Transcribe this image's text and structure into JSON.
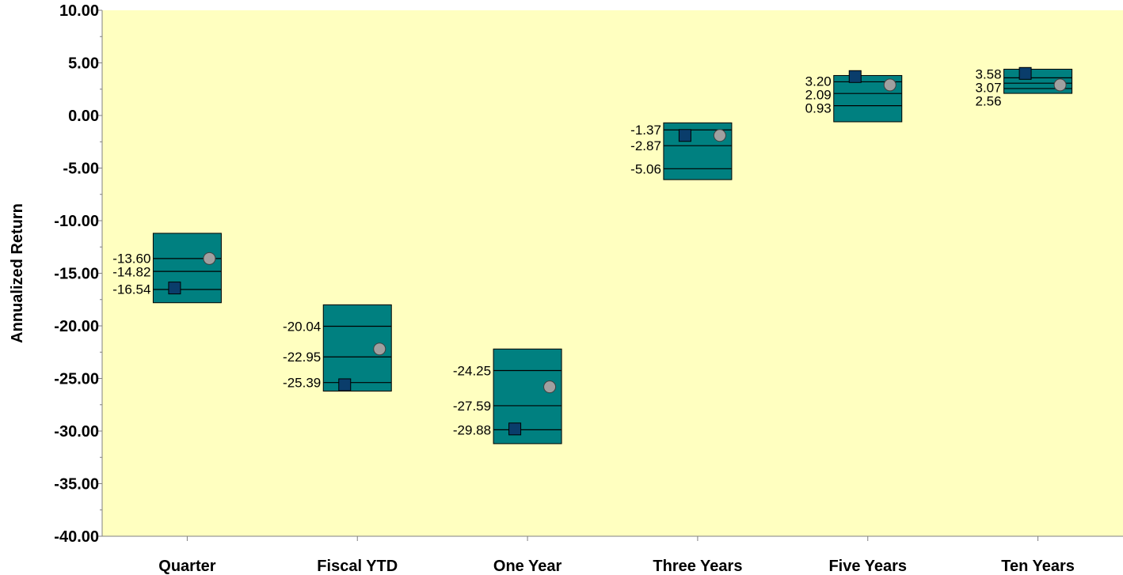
{
  "chart_data": {
    "type": "floating-bar",
    "ylabel": "Annualized Return",
    "xlabel": "",
    "ylim": [
      -40,
      10
    ],
    "y_ticks": [
      "10.00",
      "5.00",
      "0.00",
      "-5.00",
      "-10.00",
      "-15.00",
      "-20.00",
      "-25.00",
      "-30.00",
      "-35.00",
      "-40.00"
    ],
    "y_tick_values": [
      10,
      5,
      0,
      -5,
      -10,
      -15,
      -20,
      -25,
      -30,
      -35,
      -40
    ],
    "categories": [
      "Quarter",
      "Fiscal YTD",
      "One Year",
      "Three Years",
      "Five Years",
      "Ten Years"
    ],
    "grid": false,
    "colors": {
      "plot_background": "#ffffc0",
      "bar_fill": "#008080",
      "square_marker": "#0a3d6b",
      "circle_marker": "#a0a0a0"
    },
    "bars": [
      {
        "category": "Quarter",
        "low": -17.8,
        "high": -11.2,
        "quartile_labels": [
          "-13.60",
          "-14.82",
          "-16.54"
        ],
        "quartile_values": [
          -13.6,
          -14.82,
          -16.54
        ],
        "square": -16.4,
        "circle": -13.6
      },
      {
        "category": "Fiscal YTD",
        "low": -26.2,
        "high": -18.0,
        "quartile_labels": [
          "-20.04",
          "-22.95",
          "-25.39"
        ],
        "quartile_values": [
          -20.04,
          -22.95,
          -25.39
        ],
        "square": -25.6,
        "circle": -22.2
      },
      {
        "category": "One Year",
        "low": -31.2,
        "high": -22.2,
        "quartile_labels": [
          "-24.25",
          "-27.59",
          "-29.88"
        ],
        "quartile_values": [
          -24.25,
          -27.59,
          -29.88
        ],
        "square": -29.8,
        "circle": -25.8
      },
      {
        "category": "Three Years",
        "low": -6.1,
        "high": -0.7,
        "quartile_labels": [
          "-1.37",
          "-2.87",
          "-5.06"
        ],
        "quartile_values": [
          -1.37,
          -2.87,
          -5.06
        ],
        "square": -1.9,
        "circle": -1.9
      },
      {
        "category": "Five Years",
        "low": -0.6,
        "high": 3.8,
        "quartile_labels": [
          "3.20",
          "2.09",
          "0.93"
        ],
        "quartile_values": [
          3.2,
          2.09,
          0.93
        ],
        "square": 3.7,
        "circle": 2.9
      },
      {
        "category": "Ten Years",
        "low": 2.1,
        "high": 4.4,
        "quartile_labels": [
          "3.58",
          "3.07",
          "2.56"
        ],
        "quartile_values": [
          3.58,
          3.07,
          2.56
        ],
        "square": 4.0,
        "circle": 2.9
      }
    ]
  }
}
